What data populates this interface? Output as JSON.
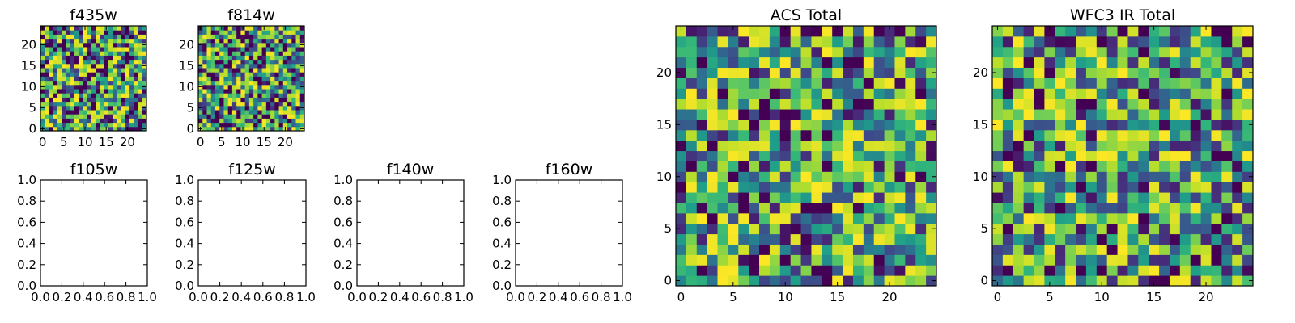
{
  "chart_data": [
    {
      "type": "heatmap",
      "title": "f435w",
      "xlim": [
        0,
        24
      ],
      "ylim": [
        0,
        24
      ],
      "xticks": [
        0,
        5,
        10,
        15,
        20
      ],
      "yticks": [
        0,
        5,
        10,
        15,
        20
      ],
      "xtick_labels": [
        "0",
        "5",
        "10",
        "15",
        "20"
      ],
      "ytick_labels": [
        "0",
        "5",
        "10",
        "15",
        "20"
      ],
      "colormap": "viridis",
      "grid_size": [
        25,
        25
      ],
      "seed": 11,
      "sharpness": 1.0
    },
    {
      "type": "heatmap",
      "title": "f814w",
      "xlim": [
        0,
        24
      ],
      "ylim": [
        0,
        24
      ],
      "xticks": [
        0,
        5,
        10,
        15,
        20
      ],
      "yticks": [
        0,
        5,
        10,
        15,
        20
      ],
      "xtick_labels": [
        "0",
        "5",
        "10",
        "15",
        "20"
      ],
      "ytick_labels": [
        "0",
        "5",
        "10",
        "15",
        "20"
      ],
      "colormap": "viridis",
      "grid_size": [
        25,
        25
      ],
      "seed": 29,
      "sharpness": 1.0
    },
    {
      "type": "empty",
      "title": "f105w",
      "xlim": [
        0,
        1
      ],
      "ylim": [
        0,
        1
      ],
      "xticks": [
        0,
        0.2,
        0.4,
        0.6,
        0.8,
        1.0
      ],
      "yticks": [
        0,
        0.2,
        0.4,
        0.6,
        0.8,
        1.0
      ],
      "xtick_labels": [
        "0.0",
        "0.2",
        "0.4",
        "0.6",
        "0.8",
        "1.0"
      ],
      "ytick_labels": [
        "0.0",
        "0.2",
        "0.4",
        "0.6",
        "0.8",
        "1.0"
      ]
    },
    {
      "type": "empty",
      "title": "f125w",
      "xlim": [
        0,
        1
      ],
      "ylim": [
        0,
        1
      ],
      "xticks": [
        0,
        0.2,
        0.4,
        0.6,
        0.8,
        1.0
      ],
      "yticks": [
        0,
        0.2,
        0.4,
        0.6,
        0.8,
        1.0
      ],
      "xtick_labels": [
        "0.0",
        "0.2",
        "0.4",
        "0.6",
        "0.8",
        "1.0"
      ],
      "ytick_labels": [
        "0.0",
        "0.2",
        "0.4",
        "0.6",
        "0.8",
        "1.0"
      ]
    },
    {
      "type": "empty",
      "title": "f140w",
      "xlim": [
        0,
        1
      ],
      "ylim": [
        0,
        1
      ],
      "xticks": [
        0,
        0.2,
        0.4,
        0.6,
        0.8,
        1.0
      ],
      "yticks": [
        0,
        0.2,
        0.4,
        0.6,
        0.8,
        1.0
      ],
      "xtick_labels": [
        "0.0",
        "0.2",
        "0.4",
        "0.6",
        "0.8",
        "1.0"
      ],
      "ytick_labels": [
        "0.0",
        "0.2",
        "0.4",
        "0.6",
        "0.8",
        "1.0"
      ]
    },
    {
      "type": "empty",
      "title": "f160w",
      "xlim": [
        0,
        1
      ],
      "ylim": [
        0,
        1
      ],
      "xticks": [
        0,
        0.2,
        0.4,
        0.6,
        0.8,
        1.0
      ],
      "yticks": [
        0,
        0.2,
        0.4,
        0.6,
        0.8,
        1.0
      ],
      "xtick_labels": [
        "0.0",
        "0.2",
        "0.4",
        "0.6",
        "0.8",
        "1.0"
      ],
      "ytick_labels": [
        "0.0",
        "0.2",
        "0.4",
        "0.6",
        "0.8",
        "1.0"
      ]
    },
    {
      "type": "heatmap",
      "title": "ACS Total",
      "xlim": [
        0,
        24
      ],
      "ylim": [
        0,
        24
      ],
      "xticks": [
        0,
        5,
        10,
        15,
        20
      ],
      "yticks": [
        0,
        5,
        10,
        15,
        20
      ],
      "xtick_labels": [
        "0",
        "5",
        "10",
        "15",
        "20"
      ],
      "ytick_labels": [
        "0",
        "5",
        "10",
        "15",
        "20"
      ],
      "colormap": "viridis",
      "grid_size": [
        25,
        25
      ],
      "seed": 47,
      "sharpness": 0.6
    },
    {
      "type": "heatmap",
      "title": "WFC3 IR Total",
      "xlim": [
        0,
        24
      ],
      "ylim": [
        0,
        24
      ],
      "xticks": [
        0,
        5,
        10,
        15,
        20
      ],
      "yticks": [
        0,
        5,
        10,
        15,
        20
      ],
      "xtick_labels": [
        "0",
        "5",
        "10",
        "15",
        "20"
      ],
      "ytick_labels": [
        "0",
        "5",
        "10",
        "15",
        "20"
      ],
      "colormap": "viridis",
      "grid_size": [
        25,
        25
      ],
      "seed": 83,
      "sharpness": 0.6
    }
  ],
  "colors": {
    "axis": "#000000",
    "background": "#ffffff"
  }
}
